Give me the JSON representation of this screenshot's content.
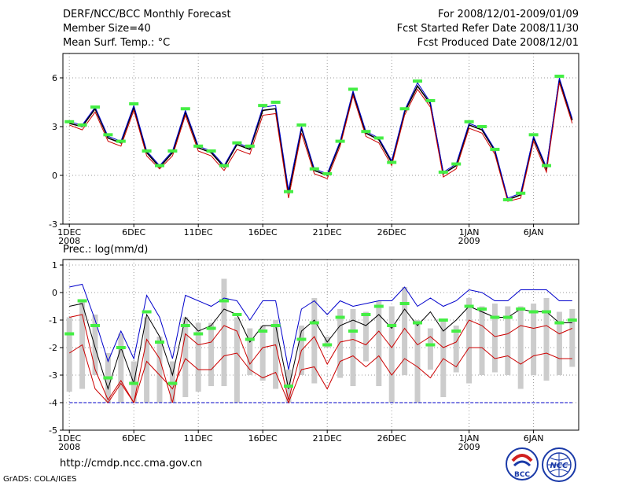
{
  "header": {
    "title": "DERF/NCC/BCC Monthly Forecast",
    "member_size": "Member Size=40",
    "variable": "Mean Surf. Temp.: °C",
    "period": "For 2008/12/01-2009/01/09",
    "start_date": "Fcst Started Refer Date 2008/11/30",
    "produced_date": "Fcst Produced Date 2008/12/01"
  },
  "footer": {
    "url": "http://cmdp.ncc.cma.gov.cn",
    "credit": "GrADS: COLA/IGES",
    "logo_bcc": "BCC",
    "logo_ncc": "NCC"
  },
  "colors": {
    "ens": "#000000",
    "up": "#0000cc",
    "lo": "#cc0000",
    "obs": "#44ee44",
    "bar": "#cccccc",
    "base": "#0000cc"
  },
  "chart_data": [
    {
      "type": "line",
      "title": "Mean Surf. Temp.: °C",
      "ylim": [
        -3,
        7.5
      ],
      "yticks": [
        -3,
        0,
        3,
        6
      ],
      "xlim": [
        0.5,
        40.5
      ],
      "xticks": [
        {
          "x": 1,
          "label": "1DEC",
          "sub": "2008"
        },
        {
          "x": 6,
          "label": "6DEC"
        },
        {
          "x": 11,
          "label": "11DEC"
        },
        {
          "x": 16,
          "label": "16DEC"
        },
        {
          "x": 21,
          "label": "21DEC"
        },
        {
          "x": 26,
          "label": "26DEC"
        },
        {
          "x": 32,
          "label": "1JAN",
          "sub": "2009"
        },
        {
          "x": 37,
          "label": "6JAN"
        }
      ],
      "grid": true,
      "series": [
        {
          "name": "ensemble",
          "values": [
            3.2,
            3.0,
            4.1,
            2.3,
            2.0,
            4.2,
            1.4,
            0.5,
            1.4,
            3.9,
            1.7,
            1.4,
            0.5,
            1.9,
            1.6,
            4.0,
            4.1,
            -1.1,
            2.9,
            0.3,
            0.0,
            2.0,
            5.1,
            2.6,
            2.2,
            0.8,
            3.9,
            5.5,
            4.4,
            0.1,
            0.6,
            3.1,
            2.8,
            1.5,
            -1.5,
            -1.2,
            2.3,
            0.4,
            5.9,
            3.4
          ]
        },
        {
          "name": "upper",
          "values": [
            3.3,
            3.1,
            4.2,
            2.4,
            2.1,
            4.3,
            1.5,
            0.6,
            1.5,
            4.0,
            1.8,
            1.5,
            0.6,
            2.0,
            1.7,
            4.2,
            4.3,
            -0.9,
            3.0,
            0.4,
            0.1,
            2.1,
            5.2,
            2.7,
            2.3,
            0.9,
            4.0,
            5.7,
            4.5,
            0.2,
            0.7,
            3.2,
            2.9,
            1.6,
            -1.4,
            -1.1,
            2.4,
            0.5,
            6.0,
            3.5
          ]
        },
        {
          "name": "lower",
          "values": [
            3.1,
            2.8,
            3.9,
            2.1,
            1.8,
            4.0,
            1.2,
            0.4,
            1.2,
            3.7,
            1.5,
            1.2,
            0.3,
            1.6,
            1.3,
            3.7,
            3.8,
            -1.4,
            2.6,
            0.1,
            -0.2,
            1.8,
            4.9,
            2.4,
            2.0,
            0.6,
            3.7,
            5.3,
            4.2,
            -0.1,
            0.4,
            2.9,
            2.6,
            1.3,
            -1.6,
            -1.4,
            2.1,
            0.2,
            5.7,
            3.2
          ]
        },
        {
          "name": "observed",
          "values": [
            3.3,
            3.1,
            4.2,
            2.5,
            2.1,
            4.4,
            1.5,
            0.6,
            1.5,
            4.1,
            1.8,
            1.5,
            0.6,
            2.0,
            1.8,
            4.3,
            4.5,
            -1.0,
            3.1,
            0.4,
            0.1,
            2.1,
            5.3,
            2.7,
            2.3,
            0.8,
            4.1,
            5.8,
            4.6,
            0.2,
            0.7,
            3.3,
            3.0,
            1.6,
            -1.5,
            -1.1,
            2.5,
            0.6,
            6.1,
            null
          ]
        }
      ]
    },
    {
      "type": "line",
      "title": "Prec.: log(mm/d)",
      "ylim": [
        -5,
        1.2
      ],
      "yticks": [
        -5,
        -4,
        -3,
        -2,
        -1,
        0,
        1
      ],
      "xlim": [
        0.5,
        40.5
      ],
      "xticks": [
        {
          "x": 1,
          "label": "1DEC",
          "sub": "2008"
        },
        {
          "x": 6,
          "label": "6DEC"
        },
        {
          "x": 11,
          "label": "11DEC"
        },
        {
          "x": 16,
          "label": "16DEC"
        },
        {
          "x": 21,
          "label": "21DEC"
        },
        {
          "x": 26,
          "label": "26DEC"
        },
        {
          "x": 32,
          "label": "1JAN",
          "sub": "2009"
        },
        {
          "x": 37,
          "label": "6JAN"
        }
      ],
      "grid": true,
      "baseline": -4,
      "bars": [
        [
          -3.6,
          -0.9
        ],
        [
          -3.5,
          -0.3
        ],
        [
          -3.0,
          -0.8
        ],
        [
          -4.0,
          -2.2
        ],
        [
          -4.0,
          -1.5
        ],
        [
          -4.0,
          -2.5
        ],
        [
          -4.0,
          -0.9
        ],
        [
          -4.0,
          -1.6
        ],
        [
          -4.0,
          -2.5
        ],
        [
          -3.8,
          -0.9
        ],
        [
          -3.6,
          -1.1
        ],
        [
          -3.4,
          -1.1
        ],
        [
          -3.4,
          0.5
        ],
        [
          -4.0,
          -0.9
        ],
        [
          -3.0,
          -1.3
        ],
        [
          -3.2,
          -1.2
        ],
        [
          -3.5,
          -1.0
        ],
        [
          -4.0,
          -2.8
        ],
        [
          -3.0,
          -1.2
        ],
        [
          -3.3,
          -0.2
        ],
        [
          -2.0,
          -1.6
        ],
        [
          -3.1,
          -0.6
        ],
        [
          -3.4,
          -0.6
        ],
        [
          -2.5,
          -0.7
        ],
        [
          -3.4,
          -0.3
        ],
        [
          -4.0,
          -0.5
        ],
        [
          -3.0,
          0.2
        ],
        [
          -4.0,
          -1.0
        ],
        [
          -2.8,
          -1.3
        ],
        [
          -3.8,
          -1.0
        ],
        [
          -2.9,
          -1.2
        ],
        [
          -3.3,
          -0.2
        ],
        [
          -3.0,
          -0.5
        ],
        [
          -2.9,
          -0.4
        ],
        [
          -3.0,
          -0.5
        ],
        [
          -3.5,
          -0.5
        ],
        [
          -3.0,
          -0.4
        ],
        [
          -3.2,
          -0.2
        ],
        [
          -3.0,
          -0.7
        ],
        [
          -2.7,
          -0.6
        ]
      ],
      "series": [
        {
          "name": "upper",
          "values": [
            0.2,
            0.3,
            -1.0,
            -2.5,
            -1.4,
            -2.4,
            -0.1,
            -0.9,
            -2.4,
            -0.1,
            -0.3,
            -0.5,
            -0.2,
            -0.3,
            -1.0,
            -0.3,
            -0.3,
            -2.8,
            -0.6,
            -0.3,
            -0.8,
            -0.3,
            -0.5,
            -0.4,
            -0.3,
            -0.3,
            0.2,
            -0.5,
            -0.2,
            -0.5,
            -0.3,
            0.1,
            0.0,
            -0.3,
            -0.3,
            0.1,
            0.1,
            0.1,
            -0.3,
            -0.3
          ]
        },
        {
          "name": "ensemble",
          "values": [
            -0.5,
            -0.4,
            -2.0,
            -3.5,
            -2.0,
            -3.3,
            -0.8,
            -1.6,
            -3.0,
            -0.9,
            -1.4,
            -1.2,
            -0.6,
            -0.8,
            -1.8,
            -1.2,
            -1.2,
            -3.5,
            -1.4,
            -1.0,
            -1.8,
            -1.2,
            -1.0,
            -1.2,
            -0.8,
            -1.3,
            -0.6,
            -1.2,
            -0.7,
            -1.4,
            -1.0,
            -0.5,
            -0.7,
            -0.9,
            -0.9,
            -0.6,
            -0.7,
            -0.7,
            -1.1,
            -1.1
          ]
        },
        {
          "name": "lower1",
          "values": [
            -0.9,
            -0.8,
            -2.8,
            -3.9,
            -3.2,
            -4.0,
            -1.7,
            -2.4,
            -4.0,
            -1.5,
            -1.9,
            -1.8,
            -1.2,
            -1.4,
            -2.6,
            -2.0,
            -1.9,
            -3.9,
            -2.1,
            -1.6,
            -2.6,
            -1.8,
            -1.7,
            -1.9,
            -1.4,
            -2.0,
            -1.3,
            -1.9,
            -1.6,
            -2.0,
            -1.8,
            -1.0,
            -1.2,
            -1.6,
            -1.5,
            -1.2,
            -1.3,
            -1.2,
            -1.5,
            -1.3
          ]
        },
        {
          "name": "lower2",
          "values": [
            -2.2,
            -1.9,
            -3.5,
            -4.0,
            -3.3,
            -4.0,
            -2.5,
            -3.0,
            -3.5,
            -2.4,
            -2.8,
            -2.8,
            -2.3,
            -2.2,
            -2.8,
            -3.1,
            -2.9,
            -4.0,
            -2.8,
            -2.7,
            -3.5,
            -2.5,
            -2.3,
            -2.7,
            -2.3,
            -3.0,
            -2.4,
            -2.7,
            -3.1,
            -2.4,
            -2.7,
            -2.0,
            -2.0,
            -2.4,
            -2.3,
            -2.6,
            -2.3,
            -2.2,
            -2.4,
            -2.4
          ]
        },
        {
          "name": "observed",
          "values": [
            -1.5,
            -0.3,
            -1.2,
            -3.1,
            -2.0,
            -3.3,
            -0.7,
            -1.8,
            -3.3,
            -1.2,
            -1.5,
            -1.3,
            -0.3,
            -0.8,
            -1.7,
            -1.4,
            -1.2,
            -3.4,
            -1.7,
            -1.1,
            -1.9,
            -0.9,
            -1.4,
            -0.8,
            -0.5,
            -1.2,
            -0.4,
            -1.1,
            -1.9,
            -1.0,
            -1.4,
            -0.5,
            -0.6,
            -0.9,
            -0.9,
            -0.6,
            -0.7,
            -0.7,
            -1.1,
            -1.0
          ]
        }
      ]
    }
  ]
}
